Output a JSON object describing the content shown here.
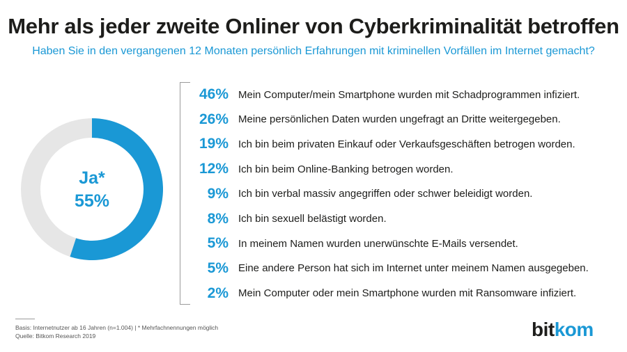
{
  "title": "Mehr als jeder zweite Onliner von Cyberkriminalität betroffen",
  "subtitle": "Haben Sie in den vergangenen 12 Monaten persönlich Erfahrungen mit kriminellen Vorfällen im Internet gemacht?",
  "colors": {
    "accent": "#1a98d5",
    "track": "#e6e6e6",
    "text": "#1d1d1b"
  },
  "chart_data": [
    {
      "type": "pie",
      "categories": [
        "Ja*",
        ""
      ],
      "values": [
        55,
        45
      ],
      "center_label": {
        "line1": "Ja*",
        "line2": "55%"
      }
    },
    {
      "type": "table",
      "items": [
        {
          "pct_label": "46%",
          "value": 46,
          "label": "Mein Computer/mein Smartphone wurden mit Schadprogrammen infiziert."
        },
        {
          "pct_label": "26%",
          "value": 26,
          "label": "Meine persönlichen Daten wurden ungefragt an Dritte weitergegeben."
        },
        {
          "pct_label": "19%",
          "value": 19,
          "label": "Ich bin beim privaten Einkauf oder Verkaufsgeschäften betrogen worden."
        },
        {
          "pct_label": "12%",
          "value": 12,
          "label": "Ich bin beim Online-Banking betrogen worden."
        },
        {
          "pct_label": "9%",
          "value": 9,
          "label": "Ich bin verbal massiv angegriffen oder schwer beleidigt worden."
        },
        {
          "pct_label": "8%",
          "value": 8,
          "label": "Ich bin sexuell belästigt worden."
        },
        {
          "pct_label": "5%",
          "value": 5,
          "label": "In meinem Namen wurden unerwünschte E-Mails versendet."
        },
        {
          "pct_label": "5%",
          "value": 5,
          "label": "Eine andere Person hat sich im Internet unter meinem Namen ausgegeben."
        },
        {
          "pct_label": "2%",
          "value": 2,
          "label": "Mein Computer oder mein Smartphone wurden mit Ransomware infiziert."
        }
      ]
    }
  ],
  "footer": {
    "basis": "Basis: Internetnutzer ab 16 Jahren (n=1.004) | * Mehrfachnennungen möglich",
    "source": "Quelle: Bitkom Research 2019"
  },
  "logo": {
    "part1": "bit",
    "part2": "kom"
  }
}
